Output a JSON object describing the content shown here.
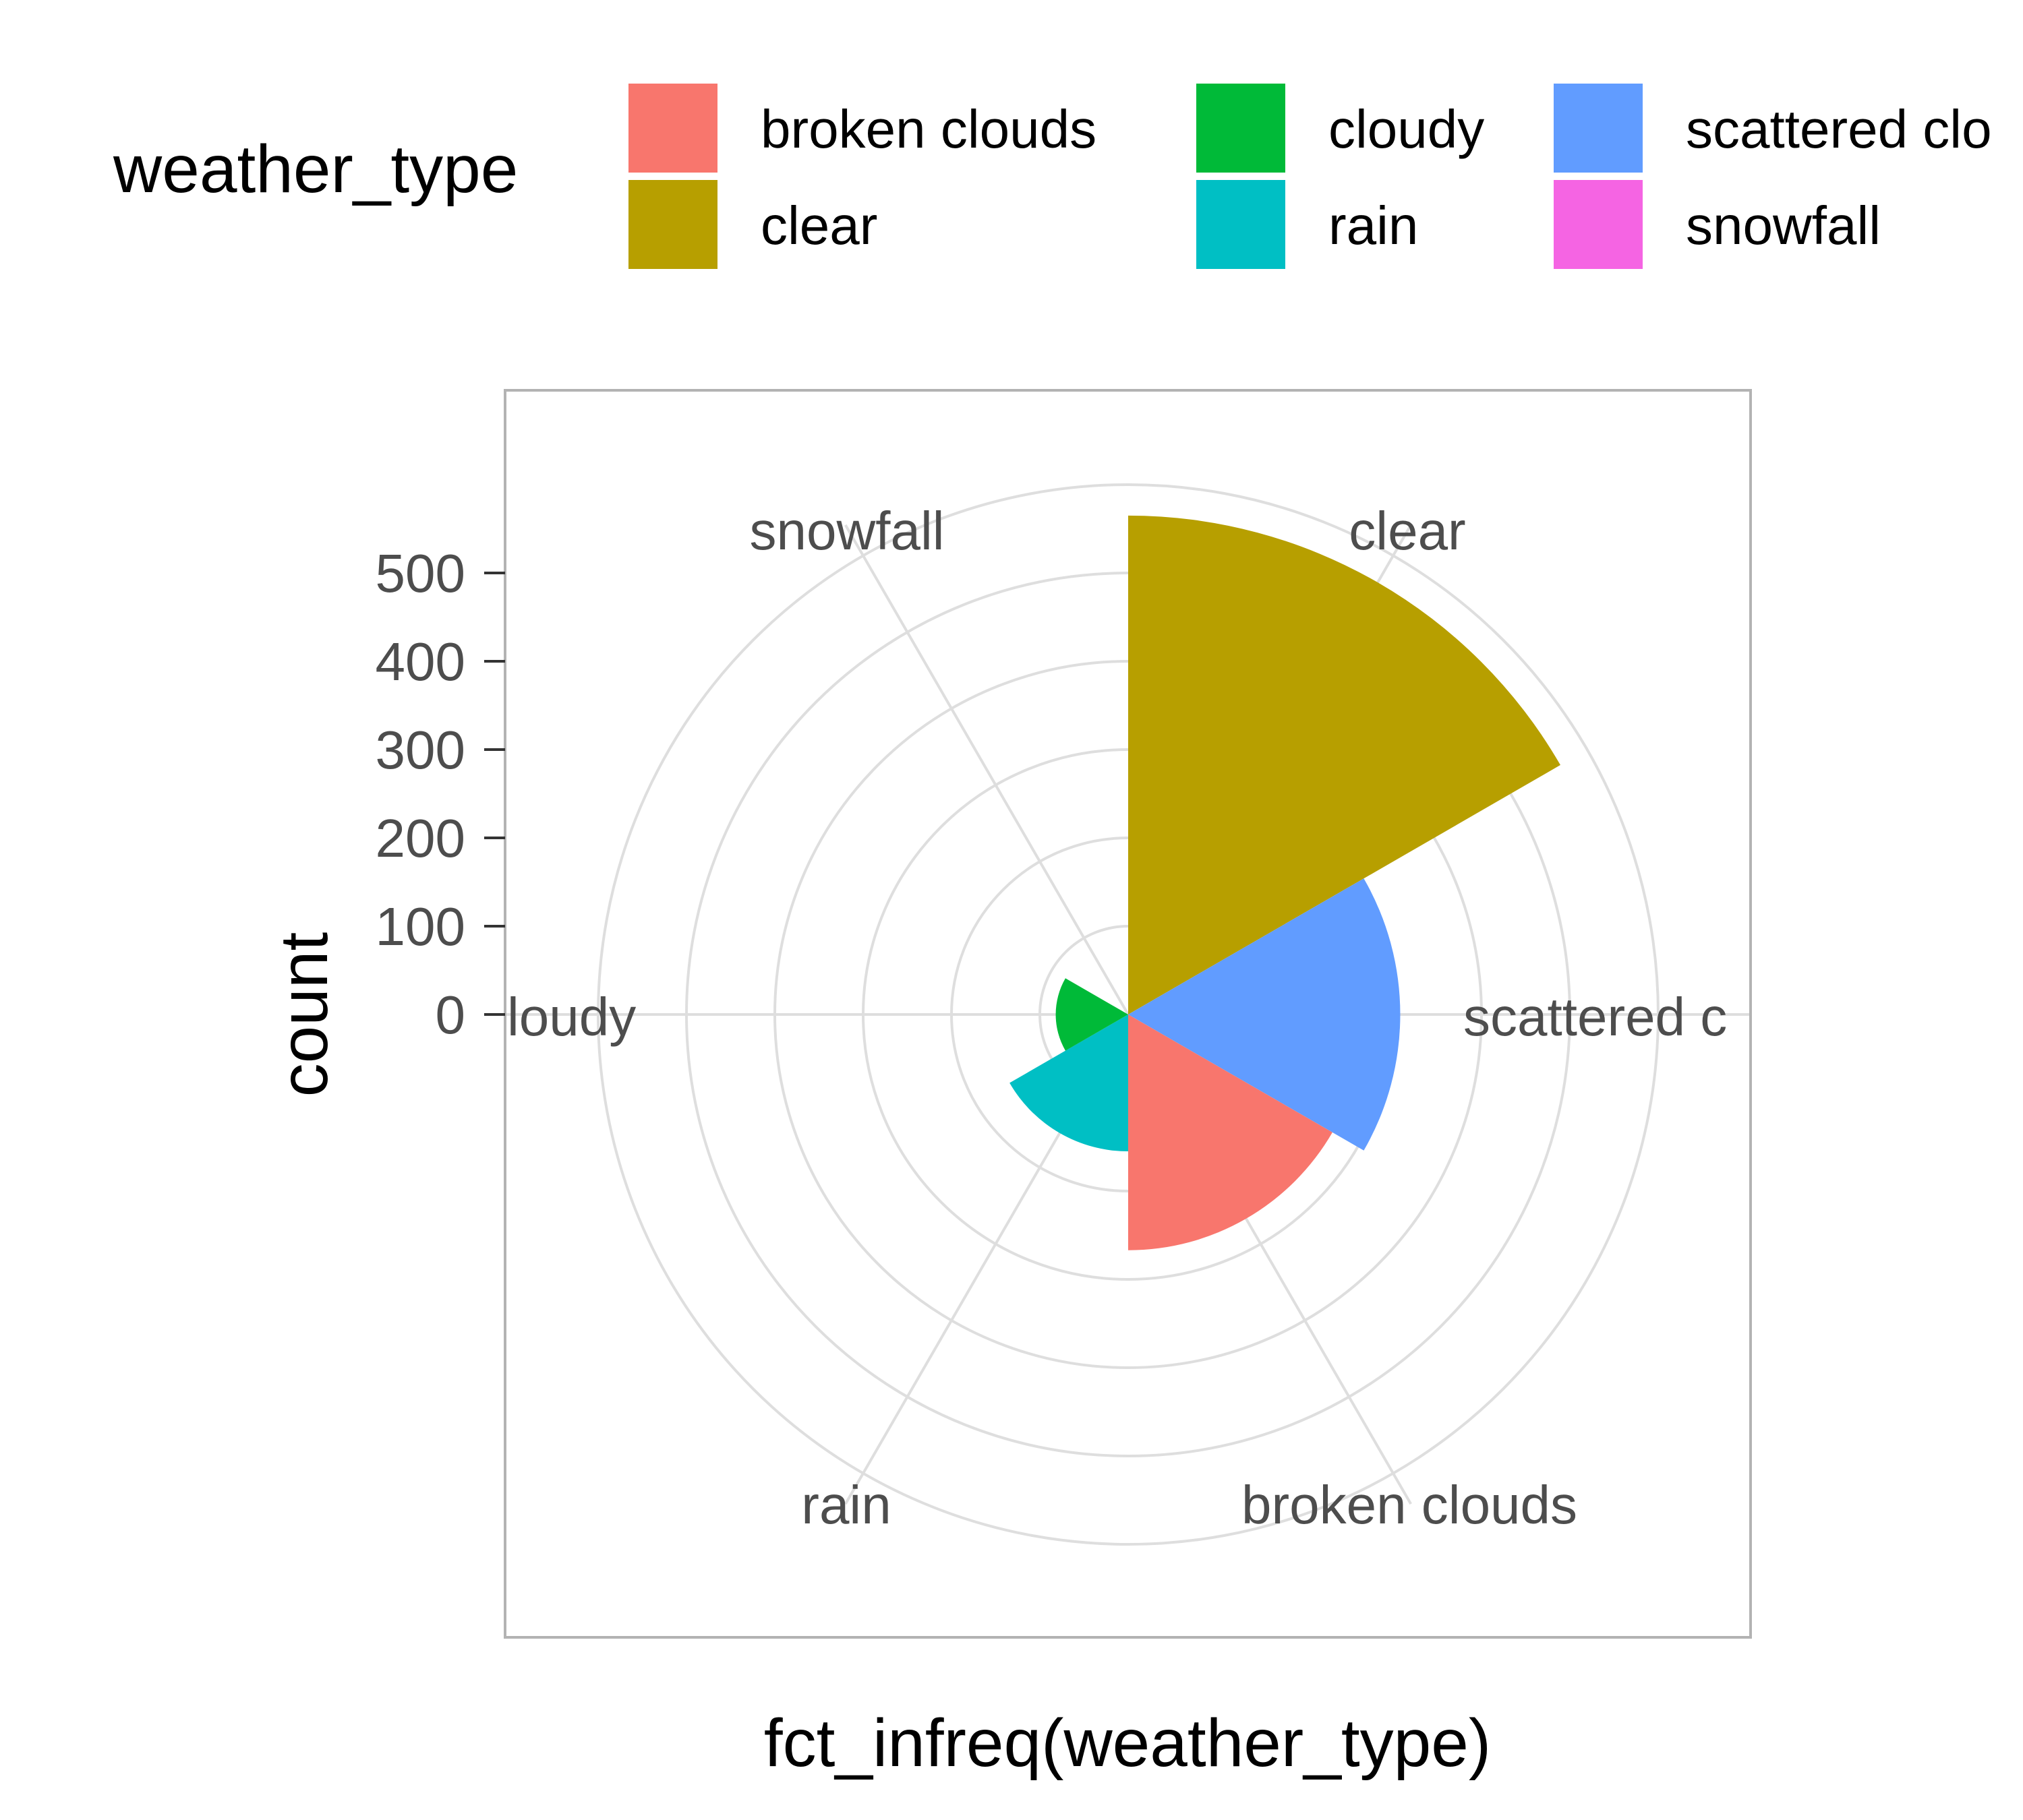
{
  "chart_data": {
    "type": "polar_bar",
    "xlabel": "fct_infreq(weather_type)",
    "ylabel": "count",
    "legend_title": "weather_type",
    "legend_position": "top",
    "y_ticks": [
      "0",
      "100",
      "200",
      "300",
      "400",
      "500"
    ],
    "ylim": [
      0,
      600
    ],
    "grid": true,
    "categories": [
      "clear",
      "scattered clouds",
      "broken clouds",
      "rain",
      "cloudy",
      "snowfall"
    ],
    "angle_labels": [
      "clear",
      "scattered c",
      "broken clouds",
      "rain",
      "loudy",
      "snowfall"
    ],
    "values": [
      565,
      308,
      267,
      155,
      82,
      0
    ],
    "colors": {
      "broken clouds": "#F8766D",
      "clear": "#B79F00",
      "cloudy": "#00BA38",
      "rain": "#00BFC4",
      "scattered clouds": "#619CFF",
      "snowfall": "#F564E3"
    },
    "legend": [
      {
        "label": "broken clouds",
        "key": "broken clouds"
      },
      {
        "label": "clear",
        "key": "clear"
      },
      {
        "label": "cloudy",
        "key": "cloudy"
      },
      {
        "label": "rain",
        "key": "rain"
      },
      {
        "label": "scattered clo",
        "key": "scattered clouds"
      },
      {
        "label": "snowfall",
        "key": "snowfall"
      }
    ]
  }
}
